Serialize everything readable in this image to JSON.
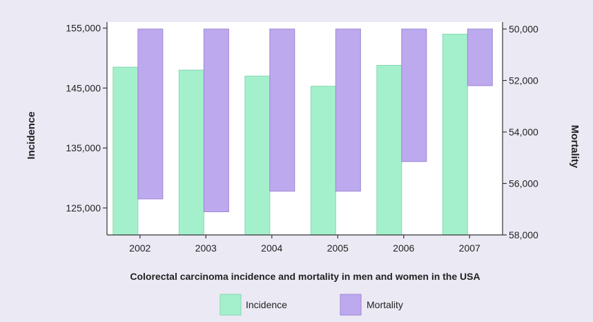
{
  "chart_data": {
    "type": "bar",
    "title": "Colorectal carcinoma incidence and mortality in men and women in the USA",
    "categories": [
      "2002",
      "2003",
      "2004",
      "2005",
      "2006",
      "2007"
    ],
    "left_axis": {
      "label": "Incidence",
      "range": [
        120500,
        156000
      ],
      "ticks": [
        155000,
        145000,
        135000,
        125000
      ],
      "tick_labels": [
        "155,000",
        "145,000",
        "135,000",
        "125,000"
      ]
    },
    "right_axis": {
      "label": "Mortality",
      "range": [
        50000,
        58000
      ],
      "inverted": true,
      "ticks": [
        50000,
        52000,
        54000,
        56000,
        58000
      ],
      "tick_labels": [
        "50,000",
        "52,000",
        "54,000",
        "56,000",
        "58,000"
      ]
    },
    "series": [
      {
        "name": "Incidence",
        "axis": "left",
        "values": [
          148500,
          148000,
          147000,
          145300,
          148800,
          154000
        ]
      },
      {
        "name": "Mortality",
        "axis": "right",
        "values": [
          56600,
          57100,
          56300,
          56300,
          55150,
          52200
        ]
      }
    ],
    "legend": {
      "position": "bottom"
    },
    "grid": false
  },
  "colors": {
    "incidence_fill": "#a4f0cc",
    "incidence_stroke": "#86d8b2",
    "mortality_fill": "#bda9ee",
    "mortality_stroke": "#9d88d4",
    "plot_bg": "#ffffff",
    "page_bg": "#ebe9f4",
    "axis": "#333333"
  }
}
